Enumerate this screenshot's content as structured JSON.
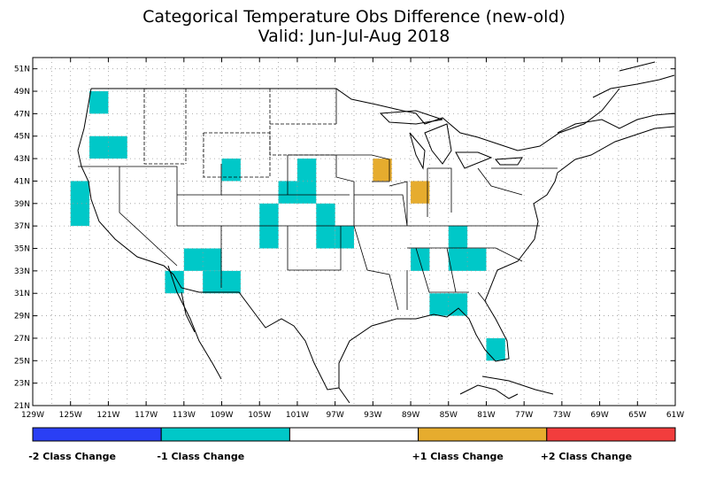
{
  "title_line1": "Categorical Temperature Obs Difference (new-old)",
  "title_line2": "Valid: Jun-Jul-Aug 2018",
  "lat_labels": [
    "21N",
    "23N",
    "25N",
    "27N",
    "29N",
    "31N",
    "33N",
    "35N",
    "37N",
    "39N",
    "41N",
    "43N",
    "45N",
    "47N",
    "49N",
    "51N"
  ],
  "lat_values": [
    21,
    23,
    25,
    27,
    29,
    31,
    33,
    35,
    37,
    39,
    41,
    43,
    45,
    47,
    49,
    51
  ],
  "lon_labels": [
    "129W",
    "125W",
    "121W",
    "117W",
    "113W",
    "109W",
    "105W",
    "101W",
    "97W",
    "93W",
    "89W",
    "85W",
    "81W",
    "77W",
    "73W",
    "69W",
    "65W",
    "61W"
  ],
  "lon_values": [
    -129,
    -125,
    -121,
    -117,
    -113,
    -109,
    -105,
    -101,
    -97,
    -93,
    -89,
    -85,
    -81,
    -77,
    -73,
    -69,
    -65,
    -61
  ],
  "map_extent": {
    "lon_min": -129,
    "lon_max": -61,
    "lat_min": 21,
    "lat_max": 52
  },
  "grid": {
    "spacing_deg": 2,
    "style": "dotted"
  },
  "colors": {
    "minus2": "#2a3ff5",
    "minus1": "#00c8c8",
    "zero": "#ffffff",
    "plus1": "#e6ac2e",
    "plus2": "#f23d3d"
  },
  "legend": {
    "minus2": "-2 Class Change",
    "minus1": "-1 Class Change",
    "plus1": "+1 Class Change",
    "plus2": "+2 Class Change"
  },
  "cells": [
    {
      "lon_w": -123,
      "lon_e": -121,
      "lat_s": 47,
      "lat_n": 49,
      "class": -1
    },
    {
      "lon_w": -123,
      "lon_e": -119,
      "lat_s": 43,
      "lat_n": 45,
      "class": -1
    },
    {
      "lon_w": -125,
      "lon_e": -123,
      "lat_s": 37,
      "lat_n": 41,
      "class": -1
    },
    {
      "lon_w": -109,
      "lon_e": -107,
      "lat_s": 41,
      "lat_n": 43,
      "class": -1
    },
    {
      "lon_w": -103,
      "lon_e": -101,
      "lat_s": 39,
      "lat_n": 41,
      "class": -1
    },
    {
      "lon_w": -101,
      "lon_e": -99,
      "lat_s": 39,
      "lat_n": 43,
      "class": -1
    },
    {
      "lon_w": -105,
      "lon_e": -103,
      "lat_s": 35,
      "lat_n": 39,
      "class": -1
    },
    {
      "lon_w": -99,
      "lon_e": -97,
      "lat_s": 35,
      "lat_n": 39,
      "class": -1
    },
    {
      "lon_w": -97,
      "lon_e": -95,
      "lat_s": 35,
      "lat_n": 37,
      "class": -1
    },
    {
      "lon_w": -113,
      "lon_e": -109,
      "lat_s": 33,
      "lat_n": 35,
      "class": -1
    },
    {
      "lon_w": -111,
      "lon_e": -107,
      "lat_s": 31,
      "lat_n": 33,
      "class": -1
    },
    {
      "lon_w": -115,
      "lon_e": -113,
      "lat_s": 31,
      "lat_n": 33,
      "class": -1
    },
    {
      "lon_w": -93,
      "lon_e": -91,
      "lat_s": 41,
      "lat_n": 43,
      "class": 1
    },
    {
      "lon_w": -89,
      "lon_e": -87,
      "lat_s": 39,
      "lat_n": 41,
      "class": 1
    },
    {
      "lon_w": -85,
      "lon_e": -83,
      "lat_s": 35,
      "lat_n": 37,
      "class": -1
    },
    {
      "lon_w": -85,
      "lon_e": -81,
      "lat_s": 33,
      "lat_n": 35,
      "class": -1
    },
    {
      "lon_w": -89,
      "lon_e": -87,
      "lat_s": 33,
      "lat_n": 35,
      "class": -1
    },
    {
      "lon_w": -87,
      "lon_e": -83,
      "lat_s": 29,
      "lat_n": 31,
      "class": -1
    },
    {
      "lon_w": -81,
      "lon_e": -79,
      "lat_s": 25,
      "lat_n": 27,
      "class": -1
    }
  ]
}
